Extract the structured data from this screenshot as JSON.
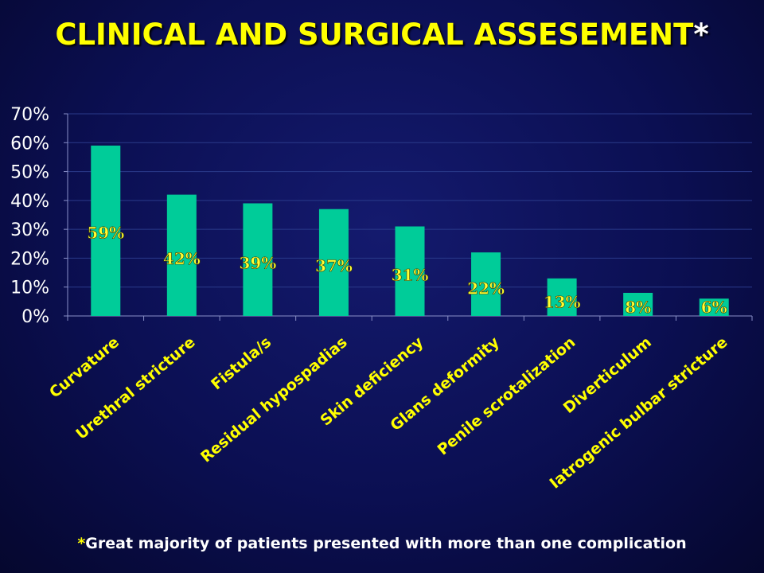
{
  "slide": {
    "title": "CLINICAL AND SURGICAL ASSESEMENT",
    "title_mark": "*",
    "footnote_mark": "*",
    "footnote": "Great majority of patients presented with more than one complication"
  },
  "colors": {
    "bar": "#00cc99",
    "data_label": "#ffff33",
    "category_label": "#ffff00",
    "tick_label": "#ffffff",
    "grid": "#2a3a8a",
    "background": "#0b0f52"
  },
  "chart_data": {
    "type": "bar",
    "title": "",
    "xlabel": "",
    "ylabel": "",
    "ylim": [
      0,
      70
    ],
    "grid": true,
    "y_ticks": [
      {
        "value": 0,
        "label": "0%"
      },
      {
        "value": 10,
        "label": "10%"
      },
      {
        "value": 20,
        "label": "20%"
      },
      {
        "value": 30,
        "label": "30%"
      },
      {
        "value": 40,
        "label": "40%"
      },
      {
        "value": 50,
        "label": "50%"
      },
      {
        "value": 60,
        "label": "60%"
      },
      {
        "value": 70,
        "label": "70%"
      }
    ],
    "categories": [
      "Curvature",
      "Urethral stricture",
      "Fistula/s",
      "Residual hypospadias",
      "Skin deficiency",
      "Glans deformity",
      "Penile scrotalization",
      "Diverticulum",
      "Iatrogenic bulbar stricture"
    ],
    "values": [
      59,
      42,
      39,
      37,
      31,
      22,
      13,
      8,
      6
    ],
    "data_labels": [
      "59%",
      "42%",
      "39%",
      "37%",
      "31%",
      "22%",
      "13%",
      "8%",
      "6%"
    ]
  }
}
